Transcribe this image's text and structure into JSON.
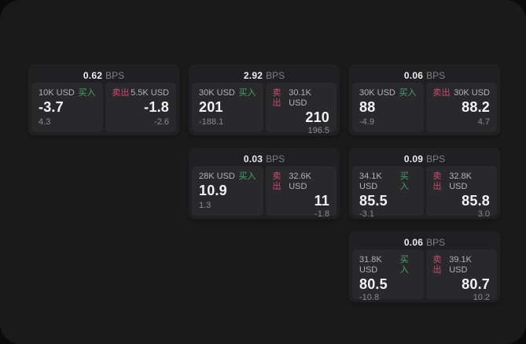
{
  "labels": {
    "bps": "BPS",
    "buy": "买入",
    "sell": "卖出"
  },
  "colors": {
    "buy": "#46a46c",
    "sell": "#cb4e6e",
    "surface": "#1a1a1b",
    "card": "#202022",
    "panel": "#29292c"
  },
  "cards": [
    {
      "bps": "0.62",
      "buy": {
        "notional": "10K USD",
        "price": "-3.7",
        "delta": "4.3"
      },
      "sell": {
        "notional": "5.5K USD",
        "price": "-1.8",
        "delta": "-2.6"
      }
    },
    {
      "bps": "2.92",
      "buy": {
        "notional": "30K USD",
        "price": "201",
        "delta": "-188.1"
      },
      "sell": {
        "notional": "30.1K USD",
        "price": "210",
        "delta": "196.5"
      }
    },
    {
      "bps": "0.06",
      "buy": {
        "notional": "30K USD",
        "price": "88",
        "delta": "-4.9"
      },
      "sell": {
        "notional": "30K USD",
        "price": "88.2",
        "delta": "4.7"
      }
    },
    {
      "bps": "0.03",
      "buy": {
        "notional": "28K USD",
        "price": "10.9",
        "delta": "1.3"
      },
      "sell": {
        "notional": "32.6K USD",
        "price": "11",
        "delta": "-1.8"
      }
    },
    {
      "bps": "0.09",
      "buy": {
        "notional": "34.1K USD",
        "price": "85.5",
        "delta": "-3.1"
      },
      "sell": {
        "notional": "32.8K USD",
        "price": "85.8",
        "delta": "3.0"
      }
    },
    {
      "bps": "0.06",
      "buy": {
        "notional": "31.8K USD",
        "price": "80.5",
        "delta": "-10.8"
      },
      "sell": {
        "notional": "39.1K USD",
        "price": "80.7",
        "delta": "10.2"
      }
    }
  ]
}
